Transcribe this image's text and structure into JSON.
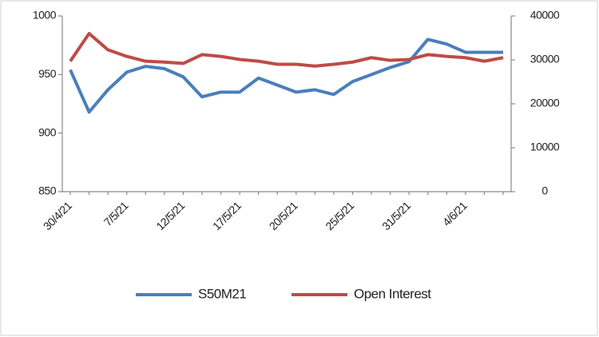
{
  "chart_data": {
    "type": "line",
    "categories": [
      "30/4/21",
      null,
      null,
      "7/5/21",
      null,
      null,
      "12/5/21",
      null,
      null,
      "17/5/21",
      null,
      null,
      "20/5/21",
      null,
      null,
      "25/5/21",
      null,
      null,
      "31/5/21",
      null,
      null,
      "4/6/21",
      null,
      null
    ],
    "series": [
      {
        "name": "S50M21",
        "color": "#4a7ebb",
        "values": [
          954,
          918,
          937,
          952,
          957,
          955,
          948,
          931,
          935,
          935,
          947,
          941,
          935,
          937,
          933,
          944,
          950,
          956,
          961,
          980,
          976,
          969,
          969,
          969
        ]
      },
      {
        "name": "Open Interest",
        "color": "#be4b48",
        "axis": "y2",
        "values": [
          29700,
          36000,
          32300,
          30800,
          29700,
          29500,
          29200,
          31200,
          30800,
          30100,
          29700,
          29000,
          29000,
          28600,
          29000,
          29500,
          30500,
          29900,
          30100,
          31200,
          30800,
          30500,
          29700,
          30500
        ]
      }
    ],
    "ylim": [
      850,
      1000
    ],
    "yticks": [
      850,
      900,
      950,
      1000
    ],
    "y2lim": [
      0,
      40000
    ],
    "y2ticks": [
      0,
      10000,
      20000,
      30000,
      40000
    ],
    "legend": "bottom"
  }
}
